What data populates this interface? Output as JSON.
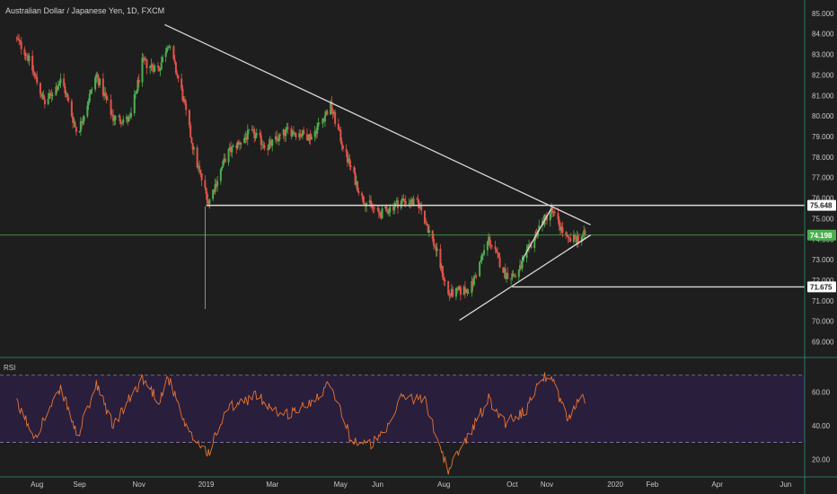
{
  "header": {
    "title": "Australian Dollar / Japanese Yen, 1D, FXCM"
  },
  "rsi": {
    "label": "RSI"
  },
  "colors": {
    "background": "#1e1e1e",
    "up": "#4caf50",
    "down": "#e0534a",
    "rsi_line": "#e8742e",
    "rsi_band": "#2a1e3d",
    "trend_line": "#d8d8d8",
    "current_price": "#4caf50",
    "grid_border": "#2f8f7f"
  },
  "chart_data": [
    {
      "type": "candlestick",
      "title": "Australian Dollar / Japanese Yen, 1D, FXCM",
      "y_ticks": [
        "85.000",
        "84.000",
        "83.000",
        "82.000",
        "81.000",
        "80.000",
        "79.000",
        "78.000",
        "77.000",
        "76.000",
        "75.000",
        "74.000",
        "73.000",
        "72.000",
        "71.000",
        "70.000",
        "69.000"
      ],
      "ylim": [
        68.5,
        85.3
      ],
      "x_ticks": [
        "Aug",
        "Sep",
        "Nov",
        "2019",
        "Mar",
        "May",
        "Jun",
        "Aug",
        "Oct",
        "Nov",
        "2020",
        "Feb",
        "Apr",
        "Jun"
      ],
      "price_labels": {
        "current": "74.198",
        "resistance": "75.648",
        "support": "71.675"
      },
      "anchors": [
        {
          "date": "2018-07-15",
          "close": 83.8
        },
        {
          "date": "2018-07-25",
          "close": 83.0
        },
        {
          "date": "2018-08-10",
          "close": 80.6
        },
        {
          "date": "2018-08-25",
          "close": 81.8
        },
        {
          "date": "2018-09-08",
          "close": 79.1
        },
        {
          "date": "2018-09-25",
          "close": 82.0
        },
        {
          "date": "2018-10-10",
          "close": 79.9
        },
        {
          "date": "2018-10-25",
          "close": 79.8
        },
        {
          "date": "2018-11-05",
          "close": 82.6
        },
        {
          "date": "2018-11-20",
          "close": 82.3
        },
        {
          "date": "2018-11-28",
          "close": 83.6
        },
        {
          "date": "2018-12-10",
          "close": 81.2
        },
        {
          "date": "2018-12-22",
          "close": 78.0
        },
        {
          "date": "2019-01-03",
          "close": 75.8
        },
        {
          "date": "2019-01-20",
          "close": 78.2
        },
        {
          "date": "2019-02-10",
          "close": 79.2
        },
        {
          "date": "2019-02-25",
          "close": 78.5
        },
        {
          "date": "2019-03-15",
          "close": 79.3
        },
        {
          "date": "2019-04-05",
          "close": 79.0
        },
        {
          "date": "2019-04-22",
          "close": 80.5
        },
        {
          "date": "2019-05-05",
          "close": 78.2
        },
        {
          "date": "2019-05-20",
          "close": 76.0
        },
        {
          "date": "2019-06-05",
          "close": 75.2
        },
        {
          "date": "2019-06-25",
          "close": 75.9
        },
        {
          "date": "2019-07-10",
          "close": 75.7
        },
        {
          "date": "2019-07-25",
          "close": 73.5
        },
        {
          "date": "2019-08-05",
          "close": 71.3
        },
        {
          "date": "2019-08-25",
          "close": 71.6
        },
        {
          "date": "2019-09-10",
          "close": 74.0
        },
        {
          "date": "2019-09-25",
          "close": 72.3
        },
        {
          "date": "2019-10-05",
          "close": 72.2
        },
        {
          "date": "2019-10-25",
          "close": 74.6
        },
        {
          "date": "2019-11-05",
          "close": 75.4
        },
        {
          "date": "2019-11-20",
          "close": 73.9
        },
        {
          "date": "2019-12-05",
          "close": 74.2
        }
      ],
      "horizontal_levels": [
        75.648,
        74.198,
        71.675
      ],
      "trend_lines": [
        {
          "from": {
            "date": "2018-11-25",
            "price": 84.45
          },
          "to": {
            "date": "2019-12-10",
            "price": 74.7
          }
        },
        {
          "from": {
            "date": "2019-08-15",
            "price": 70.05
          },
          "to": {
            "date": "2019-12-10",
            "price": 74.2
          }
        },
        {
          "from": {
            "date": "2019-10-10",
            "price": 73.0
          },
          "to": {
            "date": "2019-11-05",
            "price": 75.5
          }
        },
        {
          "from": {
            "date": "2019-11-20",
            "price": 73.5
          },
          "to": {
            "date": "2019-12-10",
            "price": 74.2
          }
        }
      ],
      "vertical_marker": {
        "date": "2018-12-31",
        "from": 70.6,
        "to": 75.6
      }
    },
    {
      "type": "line",
      "title": "RSI",
      "y_ticks": [
        "60.00",
        "40.00",
        "20.00"
      ],
      "ylim": [
        10,
        80
      ],
      "bands": [
        70,
        30
      ],
      "anchors": [
        {
          "date": "2018-07-15",
          "value": 54
        },
        {
          "date": "2018-08-01",
          "value": 34
        },
        {
          "date": "2018-08-25",
          "value": 62
        },
        {
          "date": "2018-09-08",
          "value": 33
        },
        {
          "date": "2018-09-25",
          "value": 64
        },
        {
          "date": "2018-10-10",
          "value": 40
        },
        {
          "date": "2018-11-05",
          "value": 68
        },
        {
          "date": "2018-11-20",
          "value": 55
        },
        {
          "date": "2018-11-28",
          "value": 69
        },
        {
          "date": "2018-12-15",
          "value": 36
        },
        {
          "date": "2019-01-03",
          "value": 24
        },
        {
          "date": "2019-01-20",
          "value": 50
        },
        {
          "date": "2019-02-15",
          "value": 58
        },
        {
          "date": "2019-03-10",
          "value": 46
        },
        {
          "date": "2019-04-01",
          "value": 52
        },
        {
          "date": "2019-04-22",
          "value": 66
        },
        {
          "date": "2019-05-10",
          "value": 32
        },
        {
          "date": "2019-05-25",
          "value": 28
        },
        {
          "date": "2019-06-10",
          "value": 35
        },
        {
          "date": "2019-06-25",
          "value": 58
        },
        {
          "date": "2019-07-15",
          "value": 55
        },
        {
          "date": "2019-08-05",
          "value": 13
        },
        {
          "date": "2019-08-15",
          "value": 25
        },
        {
          "date": "2019-09-10",
          "value": 56
        },
        {
          "date": "2019-09-25",
          "value": 42
        },
        {
          "date": "2019-10-15",
          "value": 50
        },
        {
          "date": "2019-10-25",
          "value": 68
        },
        {
          "date": "2019-11-05",
          "value": 70
        },
        {
          "date": "2019-11-20",
          "value": 43
        },
        {
          "date": "2019-12-01",
          "value": 58
        },
        {
          "date": "2019-12-08",
          "value": 50
        }
      ]
    }
  ]
}
